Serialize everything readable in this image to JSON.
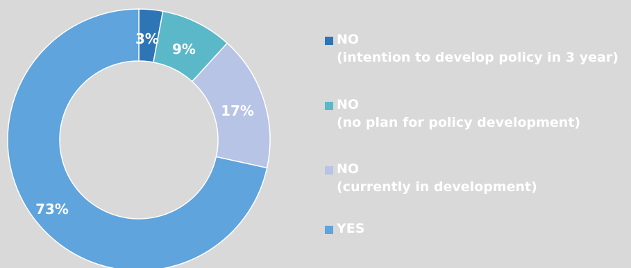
{
  "chart_data": {
    "type": "pie",
    "variant": "donut",
    "slices": [
      {
        "label": "NO",
        "sublabel": "(intention to develop policy in 3 year)",
        "value": 3,
        "display": "3%",
        "color": "#2e75b6"
      },
      {
        "label": "NO",
        "sublabel": "(no plan for policy development)",
        "value": 9,
        "display": "9%",
        "color": "#5bb8c9"
      },
      {
        "label": "NO",
        "sublabel": "(currently in development)",
        "value": 17,
        "display": "17%",
        "color": "#b8c4e6"
      },
      {
        "label": "YES",
        "sublabel": "",
        "value": 73,
        "display": "73%",
        "color": "#5fa4dc"
      }
    ],
    "title": "",
    "legend_position": "right"
  }
}
